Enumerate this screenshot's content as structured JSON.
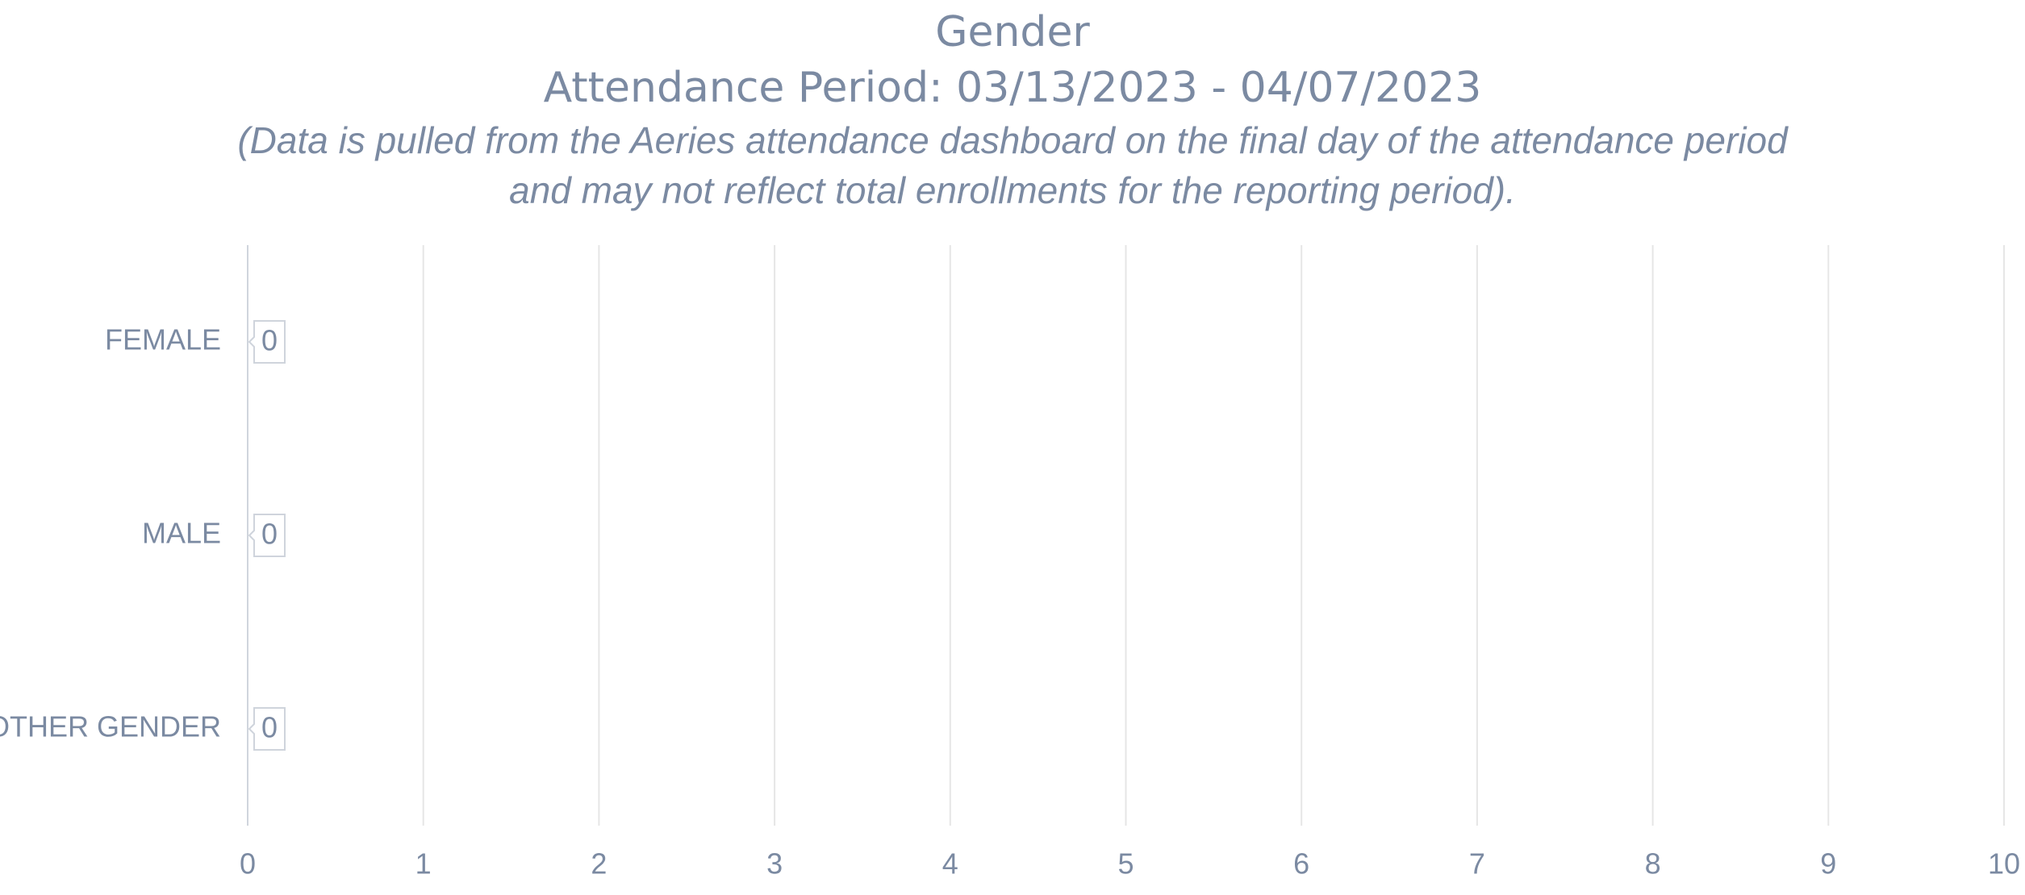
{
  "chart_data": {
    "type": "bar",
    "orientation": "horizontal",
    "title": "Gender",
    "subtitle": "Attendance Period: 03/13/2023 - 04/07/2023",
    "note": [
      "(Data is pulled from the Aeries attendance dashboard on the final day of the attendance period",
      "and may not reflect total enrollments for the reporting period)."
    ],
    "categories": [
      "FEMALE",
      "MALE",
      "OTHER GENDER"
    ],
    "values": [
      0,
      0,
      0
    ],
    "color": "#7b8aa2",
    "xlim": [
      0,
      10
    ],
    "xticks": [
      0,
      1,
      2,
      3,
      4,
      5,
      6,
      7,
      8,
      9,
      10
    ],
    "grid": true
  }
}
